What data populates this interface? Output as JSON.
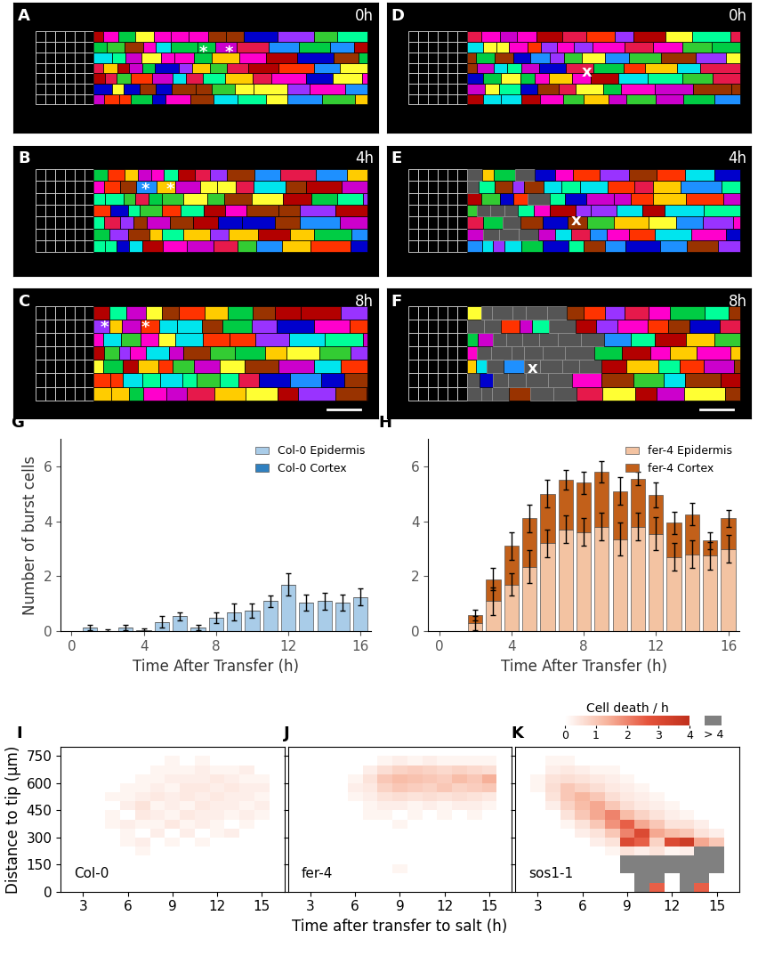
{
  "image_panels": [
    {
      "label": "A",
      "time": "0h",
      "marks": [
        "*",
        "*"
      ]
    },
    {
      "label": "B",
      "time": "4h",
      "marks": [
        "*",
        "*"
      ]
    },
    {
      "label": "C",
      "time": "8h",
      "marks": [
        "*",
        "*"
      ]
    },
    {
      "label": "D",
      "time": "0h",
      "marks": [
        "x"
      ]
    },
    {
      "label": "E",
      "time": "4h",
      "marks": [
        "x"
      ]
    },
    {
      "label": "F",
      "time": "8h",
      "marks": [
        "x"
      ]
    }
  ],
  "chart_data": [
    {
      "type": "bar",
      "panel": "G",
      "stacked": true,
      "x": [
        1,
        2,
        3,
        4,
        5,
        6,
        7,
        8,
        9,
        10,
        11,
        12,
        13,
        14,
        15,
        16
      ],
      "series": [
        {
          "name": "Col-0 Epidermis",
          "color": "#a9cce8",
          "values": [
            0.15,
            0.02,
            0.15,
            0.05,
            0.35,
            0.55,
            0.15,
            0.5,
            0.7,
            0.75,
            1.1,
            1.7,
            1.05,
            1.1,
            1.05,
            1.25
          ],
          "errors": [
            0.1,
            0.05,
            0.1,
            0.05,
            0.2,
            0.15,
            0.1,
            0.2,
            0.3,
            0.25,
            0.2,
            0.4,
            0.3,
            0.3,
            0.3,
            0.3
          ]
        },
        {
          "name": "Col-0 Cortex",
          "color": "#2f80c0",
          "values": [
            0,
            0,
            0,
            0,
            0,
            0,
            0,
            0,
            0,
            0,
            0,
            0,
            0,
            0,
            0,
            0
          ],
          "errors": [
            0,
            0,
            0,
            0,
            0,
            0,
            0,
            0,
            0,
            0,
            0,
            0,
            0,
            0,
            0,
            0
          ]
        }
      ],
      "xlim": [
        -0.6,
        16.6
      ],
      "xticks": [
        0,
        4,
        8,
        12,
        16
      ],
      "ylim": [
        0,
        7
      ],
      "yticks": [
        0,
        2,
        4,
        6
      ],
      "x_label": "Time After Transfer (h)",
      "y_label": "Number of burst cells",
      "legend": "upper right"
    },
    {
      "type": "bar",
      "panel": "H",
      "stacked": true,
      "x": [
        1,
        2,
        3,
        4,
        5,
        6,
        7,
        8,
        9,
        10,
        11,
        12,
        13,
        14,
        15,
        16
      ],
      "series": [
        {
          "name": "fer-4 Epidermis",
          "color": "#f3c3a2",
          "values": [
            0,
            0.3,
            1.1,
            1.7,
            2.35,
            3.2,
            3.7,
            3.6,
            3.8,
            3.35,
            3.8,
            3.55,
            2.7,
            2.8,
            2.75,
            3.0
          ],
          "errors": [
            0,
            0.25,
            0.5,
            0.4,
            0.6,
            0.5,
            0.5,
            0.5,
            0.5,
            0.6,
            0.5,
            0.6,
            0.5,
            0.5,
            0.5,
            0.5
          ]
        },
        {
          "name": "fer-4 Cortex",
          "color": "#c2601a",
          "values": [
            0,
            0.3,
            0.8,
            1.4,
            1.75,
            1.8,
            1.8,
            1.8,
            2.0,
            1.75,
            1.75,
            1.4,
            1.25,
            1.45,
            0.55,
            1.1
          ],
          "errors": [
            0,
            0.2,
            0.4,
            0.5,
            0.5,
            0.5,
            0.35,
            0.4,
            0.4,
            0.5,
            0.25,
            0.45,
            0.4,
            0.4,
            0.3,
            0.3
          ]
        }
      ],
      "xlim": [
        -0.6,
        16.6
      ],
      "xticks": [
        0,
        4,
        8,
        12,
        16
      ],
      "ylim": [
        0,
        7
      ],
      "yticks": [
        0,
        2,
        4,
        6
      ],
      "x_label": "Time After Transfer (h)",
      "legend": "upper right"
    },
    {
      "type": "heatmap",
      "panel": "I",
      "annotation": "Col-0",
      "x_bins": [
        1.5,
        2.5,
        3.5,
        4.5,
        5.5,
        6.5,
        7.5,
        8.5,
        9.5,
        10.5,
        11.5,
        12.5,
        13.5,
        14.5,
        15.5,
        16.5
      ],
      "y_bins": [
        0,
        50,
        100,
        150,
        200,
        250,
        300,
        350,
        400,
        450,
        500,
        550,
        600,
        650,
        700,
        750,
        800
      ],
      "cells": [
        [
          0,
          0,
          0,
          0,
          0,
          0,
          0,
          0,
          0,
          0,
          0,
          0,
          0,
          0,
          0
        ],
        [
          0,
          0,
          0,
          0,
          0,
          0,
          0,
          0,
          0,
          0,
          0,
          0,
          0,
          0,
          0
        ],
        [
          0,
          0,
          0,
          0,
          0,
          0,
          0,
          0,
          0,
          0,
          0,
          0,
          0,
          0,
          0
        ],
        [
          0,
          0,
          0,
          0,
          0,
          0,
          0,
          0,
          0,
          0,
          0,
          0,
          0,
          0,
          0
        ],
        [
          0,
          0,
          0,
          0,
          0,
          0.2,
          0,
          0,
          0,
          0,
          0,
          0,
          0,
          0,
          0
        ],
        [
          0,
          0,
          0,
          0,
          0.2,
          0.3,
          0,
          0.2,
          0,
          0.2,
          0,
          0,
          0,
          0,
          0
        ],
        [
          0,
          0,
          0,
          0,
          0.2,
          0,
          0.3,
          0,
          0.3,
          0,
          0.2,
          0.3,
          0,
          0,
          0
        ],
        [
          0,
          0,
          0,
          0.2,
          0.3,
          0.2,
          0.2,
          0.4,
          0.2,
          0.3,
          0.2,
          0,
          0.2,
          0,
          0
        ],
        [
          0,
          0,
          0,
          0.2,
          0,
          0.4,
          0.3,
          0.2,
          0.4,
          0.3,
          0.3,
          0.2,
          0.3,
          0.2,
          0
        ],
        [
          0,
          0,
          0,
          0,
          0.3,
          0.5,
          0.2,
          0.3,
          0.2,
          0.4,
          0.3,
          0.3,
          0.2,
          0.3,
          0
        ],
        [
          0,
          0,
          0,
          0.2,
          0.2,
          0.3,
          0.4,
          0.3,
          0.4,
          0.3,
          0.4,
          0.3,
          0.3,
          0.2,
          0
        ],
        [
          0,
          0,
          0,
          0,
          0.2,
          0.2,
          0.3,
          0.2,
          0.4,
          0.4,
          0.3,
          0.4,
          0.3,
          0.3,
          0
        ],
        [
          0,
          0,
          0,
          0,
          0,
          0.2,
          0.2,
          0.3,
          0.3,
          0.3,
          0.4,
          0.3,
          0.2,
          0.2,
          0
        ],
        [
          0,
          0,
          0,
          0,
          0,
          0,
          0.2,
          0.2,
          0.2,
          0.3,
          0.2,
          0.2,
          0.3,
          0,
          0
        ],
        [
          0,
          0,
          0,
          0,
          0,
          0,
          0,
          0.2,
          0,
          0.2,
          0,
          0,
          0,
          0,
          0
        ],
        [
          0,
          0,
          0,
          0,
          0,
          0,
          0,
          0,
          0,
          0,
          0,
          0,
          0,
          0,
          0
        ]
      ],
      "xlim": [
        1.5,
        16.5
      ],
      "xticks": [
        3,
        6,
        9,
        12,
        15
      ],
      "ylim": [
        0,
        800
      ],
      "yticks": [
        0,
        150,
        300,
        450,
        600,
        750
      ],
      "y_label": "Distance to tip (µm)"
    },
    {
      "type": "heatmap",
      "panel": "J",
      "annotation": "fer-4",
      "x_bins": [
        1.5,
        2.5,
        3.5,
        4.5,
        5.5,
        6.5,
        7.5,
        8.5,
        9.5,
        10.5,
        11.5,
        12.5,
        13.5,
        14.5,
        15.5,
        16.5
      ],
      "y_bins": [
        0,
        50,
        100,
        150,
        200,
        250,
        300,
        350,
        400,
        450,
        500,
        550,
        600,
        650,
        700,
        750,
        800
      ],
      "cells": [
        [
          0,
          0,
          0,
          0,
          0,
          0,
          0,
          0,
          0,
          0,
          0,
          0,
          0,
          0,
          0
        ],
        [
          0,
          0,
          0,
          0,
          0,
          0,
          0,
          0,
          0,
          0,
          0,
          0,
          0,
          0,
          0
        ],
        [
          0,
          0,
          0,
          0,
          0,
          0,
          0,
          0.2,
          0,
          0,
          0,
          0,
          0,
          0,
          0
        ],
        [
          0,
          0,
          0,
          0,
          0,
          0,
          0,
          0,
          0,
          0,
          0,
          0,
          0,
          0,
          0
        ],
        [
          0,
          0,
          0,
          0,
          0,
          0,
          0,
          0,
          0,
          0,
          0,
          0,
          0,
          0,
          0
        ],
        [
          0,
          0,
          0,
          0,
          0,
          0,
          0,
          0,
          0,
          0,
          0,
          0,
          0,
          0,
          0
        ],
        [
          0,
          0,
          0,
          0,
          0,
          0,
          0,
          0,
          0,
          0,
          0,
          0,
          0,
          0,
          0
        ],
        [
          0,
          0,
          0,
          0,
          0,
          0,
          0,
          0.2,
          0,
          0,
          0,
          0,
          0,
          0,
          0
        ],
        [
          0,
          0,
          0,
          0,
          0,
          0.2,
          0.2,
          0,
          0.2,
          0,
          0.2,
          0,
          0.2,
          0,
          0
        ],
        [
          0,
          0,
          0,
          0,
          0,
          0.2,
          0.3,
          0.3,
          0.2,
          0.3,
          0.2,
          0.3,
          0.3,
          0.2,
          0
        ],
        [
          0,
          0,
          0,
          0,
          0.2,
          0.3,
          0.5,
          0.6,
          0.5,
          0.6,
          0.5,
          0.6,
          0.5,
          0.4,
          0
        ],
        [
          0,
          0,
          0,
          0,
          0.3,
          0.4,
          0.8,
          1.0,
          0.9,
          0.8,
          1.0,
          0.8,
          0.9,
          1.0,
          0
        ],
        [
          0,
          0,
          0,
          0,
          0.2,
          0.5,
          1.0,
          1.2,
          1.1,
          1.0,
          0.9,
          1.2,
          1.0,
          1.4,
          0
        ],
        [
          0,
          0,
          0,
          0,
          0,
          0.3,
          0.6,
          0.8,
          0.9,
          0.8,
          0.7,
          0.8,
          0.7,
          0.6,
          0
        ],
        [
          0,
          0,
          0,
          0,
          0,
          0,
          0.2,
          0.3,
          0.2,
          0.3,
          0.2,
          0.2,
          0.2,
          0.2,
          0
        ],
        [
          0,
          0,
          0,
          0,
          0,
          0,
          0,
          0,
          0,
          0,
          0,
          0,
          0,
          0,
          0
        ]
      ],
      "xlim": [
        1.5,
        16.5
      ],
      "xticks": [
        3,
        6,
        9,
        12,
        15
      ],
      "ylim": [
        0,
        800
      ],
      "yticks": [
        0,
        150,
        300,
        450,
        600,
        750
      ],
      "tick_labels": "x",
      "x_label": "Time after transfer to salt (h)"
    },
    {
      "type": "heatmap",
      "panel": "K",
      "annotation": "sos1-1",
      "x_bins": [
        1.5,
        2.5,
        3.5,
        4.5,
        5.5,
        6.5,
        7.5,
        8.5,
        9.5,
        10.5,
        11.5,
        12.5,
        13.5,
        14.5,
        15.5,
        16.5
      ],
      "y_bins": [
        0,
        50,
        100,
        150,
        200,
        250,
        300,
        350,
        400,
        450,
        500,
        550,
        600,
        650,
        700,
        750,
        800
      ],
      "cells": [
        [
          0,
          0,
          0,
          0,
          0,
          0,
          0,
          0,
          5,
          2.5,
          0,
          5,
          2.5,
          0,
          0
        ],
        [
          0,
          0,
          0,
          0,
          0,
          0,
          0,
          0,
          5,
          5,
          0,
          5,
          5,
          0,
          0
        ],
        [
          0,
          0,
          0,
          0,
          0,
          0,
          0,
          5,
          5,
          5,
          5,
          5,
          5,
          5,
          0
        ],
        [
          0,
          0,
          0,
          0,
          0,
          0,
          0,
          5,
          5,
          5,
          5,
          5,
          5,
          5,
          0
        ],
        [
          0,
          0,
          0,
          0,
          0,
          0,
          0.2,
          0.5,
          0.3,
          0.5,
          0.2,
          0.3,
          5,
          5,
          0
        ],
        [
          0,
          0,
          0,
          0,
          0,
          0.3,
          0.5,
          3.0,
          2.5,
          0.8,
          3.0,
          3.5,
          1.5,
          1.0,
          0
        ],
        [
          0,
          0,
          0,
          0,
          0.3,
          0.5,
          1.0,
          2.0,
          3.0,
          1.5,
          1.2,
          1.0,
          0.5,
          0.3,
          0
        ],
        [
          0,
          0,
          0,
          0.2,
          0.5,
          1.0,
          1.8,
          2.5,
          1.5,
          1.0,
          0.5,
          0.5,
          0.3,
          0,
          0
        ],
        [
          0,
          0,
          0,
          0.5,
          1.0,
          1.5,
          2.0,
          1.2,
          0.8,
          0.5,
          0.3,
          0.2,
          0,
          0,
          0
        ],
        [
          0,
          0,
          0.3,
          0.8,
          1.2,
          1.5,
          1.0,
          0.6,
          0.4,
          0.3,
          0.2,
          0,
          0,
          0,
          0
        ],
        [
          0,
          0,
          0.5,
          1.0,
          1.3,
          1.0,
          0.6,
          0.4,
          0.3,
          0.2,
          0,
          0,
          0,
          0,
          0
        ],
        [
          0,
          0.2,
          0.6,
          1.0,
          0.8,
          0.6,
          0.4,
          0.3,
          0.2,
          0,
          0,
          0,
          0,
          0,
          0
        ],
        [
          0,
          0.2,
          0.5,
          0.6,
          0.5,
          0.4,
          0.3,
          0.2,
          0,
          0,
          0,
          0,
          0,
          0,
          0
        ],
        [
          0,
          0,
          0.3,
          0.4,
          0.3,
          0.2,
          0.2,
          0,
          0,
          0,
          0,
          0,
          0,
          0,
          0
        ],
        [
          0,
          0,
          0.2,
          0.2,
          0,
          0,
          0,
          0,
          0,
          0,
          0,
          0,
          0,
          0,
          0
        ],
        [
          0,
          0,
          0,
          0,
          0,
          0,
          0,
          0,
          0,
          0,
          0,
          0,
          0,
          0,
          0
        ]
      ],
      "xlim": [
        1.5,
        16.5
      ],
      "xticks": [
        3,
        6,
        9,
        12,
        15
      ],
      "ylim": [
        0,
        800
      ],
      "yticks": [
        0,
        150,
        300,
        450,
        600,
        750
      ],
      "tick_labels": "x",
      "colorbar": {
        "label": "Cell death / h",
        "range": [
          0,
          4
        ],
        "ticks": [
          0,
          1,
          2,
          3,
          4
        ],
        "over_label": "> 4"
      }
    }
  ]
}
